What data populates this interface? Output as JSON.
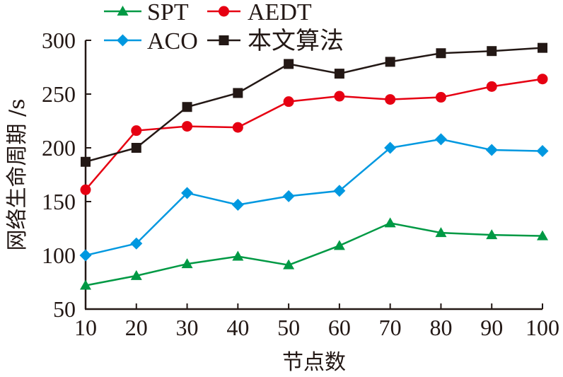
{
  "chart_data": {
    "type": "line",
    "title": "",
    "xlabel": "节点数",
    "ylabel": "网络生命周期 /s",
    "x": [
      10,
      20,
      30,
      40,
      50,
      60,
      70,
      80,
      90,
      100
    ],
    "xticks": [
      "10",
      "20",
      "30",
      "40",
      "50",
      "60",
      "70",
      "80",
      "90",
      "100"
    ],
    "yticks": [
      "50",
      "100",
      "150",
      "200",
      "250",
      "300"
    ],
    "ytick_values": [
      50,
      100,
      150,
      200,
      250,
      300
    ],
    "xlim": [
      10,
      100
    ],
    "ylim": [
      50,
      300
    ],
    "grid": false,
    "legend_position": "top",
    "series": [
      {
        "name": "SPT",
        "color": "#009944",
        "marker": "triangle",
        "values": [
          72,
          81,
          92,
          99,
          91,
          109,
          130,
          121,
          119,
          118
        ]
      },
      {
        "name": "AEDT",
        "color": "#e60012",
        "marker": "circle",
        "values": [
          161,
          216,
          220,
          219,
          243,
          248,
          245,
          247,
          257,
          264
        ]
      },
      {
        "name": "ACO",
        "color": "#0098e0",
        "marker": "diamond",
        "values": [
          100,
          111,
          158,
          147,
          155,
          160,
          200,
          208,
          198,
          197
        ]
      },
      {
        "name": "本文算法",
        "color": "#231815",
        "marker": "square",
        "values": [
          187,
          200,
          238,
          251,
          278,
          269,
          280,
          288,
          290,
          293
        ]
      }
    ]
  }
}
